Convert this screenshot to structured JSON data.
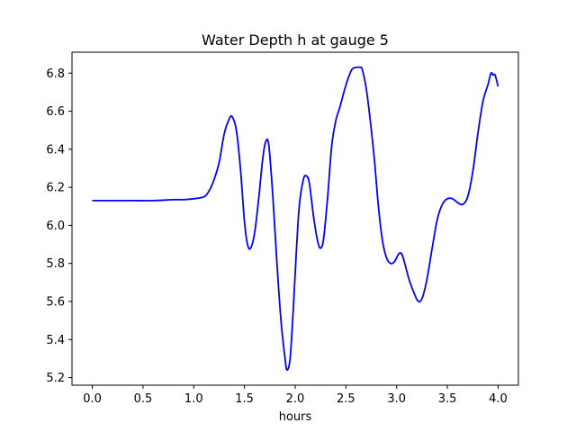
{
  "chart_data": {
    "type": "line",
    "title": "Water Depth h at gauge 5",
    "xlabel": "hours",
    "ylabel": "",
    "xlim": [
      -0.2,
      4.2
    ],
    "ylim": [
      5.16,
      6.91
    ],
    "xticks": [
      0.0,
      0.5,
      1.0,
      1.5,
      2.0,
      2.5,
      3.0,
      3.5,
      4.0
    ],
    "xtick_labels": [
      "0.0",
      "0.5",
      "1.0",
      "1.5",
      "2.0",
      "2.5",
      "3.0",
      "3.5",
      "4.0"
    ],
    "yticks": [
      5.2,
      5.4,
      5.6,
      5.8,
      6.0,
      6.2,
      6.4,
      6.6,
      6.8
    ],
    "ytick_labels": [
      "5.2",
      "5.4",
      "5.6",
      "5.8",
      "6.0",
      "6.2",
      "6.4",
      "6.6",
      "6.8"
    ],
    "grid": false,
    "legend": "none",
    "line_color": "#0000ff",
    "series": [
      {
        "x": [
          0.0,
          0.2,
          0.4,
          0.6,
          0.8,
          0.9,
          1.0,
          1.1,
          1.15,
          1.2,
          1.25,
          1.3,
          1.35,
          1.38,
          1.42,
          1.46,
          1.5,
          1.53,
          1.56,
          1.6,
          1.64,
          1.68,
          1.71,
          1.74,
          1.78,
          1.82,
          1.86,
          1.9,
          1.92,
          1.95,
          1.98,
          2.01,
          2.04,
          2.08,
          2.11,
          2.14,
          2.18,
          2.22,
          2.25,
          2.28,
          2.32,
          2.36,
          2.4,
          2.44,
          2.48,
          2.52,
          2.56,
          2.6,
          2.64,
          2.66,
          2.7,
          2.74,
          2.78,
          2.82,
          2.86,
          2.9,
          2.94,
          2.98,
          3.02,
          3.05,
          3.08,
          3.12,
          3.16,
          3.2,
          3.23,
          3.26,
          3.3,
          3.35,
          3.4,
          3.45,
          3.5,
          3.55,
          3.6,
          3.65,
          3.7,
          3.75,
          3.8,
          3.85,
          3.9,
          3.93,
          3.95,
          3.97,
          4.0
        ],
        "y": [
          6.13,
          6.13,
          6.13,
          6.13,
          6.135,
          6.135,
          6.14,
          6.15,
          6.18,
          6.24,
          6.33,
          6.48,
          6.56,
          6.57,
          6.5,
          6.3,
          6.02,
          5.9,
          5.88,
          5.96,
          6.14,
          6.35,
          6.44,
          6.42,
          6.15,
          5.8,
          5.5,
          5.3,
          5.24,
          5.3,
          5.55,
          5.85,
          6.1,
          6.24,
          6.26,
          6.22,
          6.05,
          5.92,
          5.88,
          5.93,
          6.15,
          6.42,
          6.55,
          6.62,
          6.7,
          6.77,
          6.82,
          6.83,
          6.83,
          6.82,
          6.72,
          6.55,
          6.35,
          6.1,
          5.92,
          5.83,
          5.8,
          5.81,
          5.85,
          5.85,
          5.8,
          5.72,
          5.66,
          5.61,
          5.6,
          5.63,
          5.72,
          5.88,
          6.03,
          6.11,
          6.14,
          6.14,
          6.12,
          6.11,
          6.15,
          6.28,
          6.48,
          6.65,
          6.74,
          6.8,
          6.79,
          6.79,
          6.73
        ]
      }
    ]
  }
}
